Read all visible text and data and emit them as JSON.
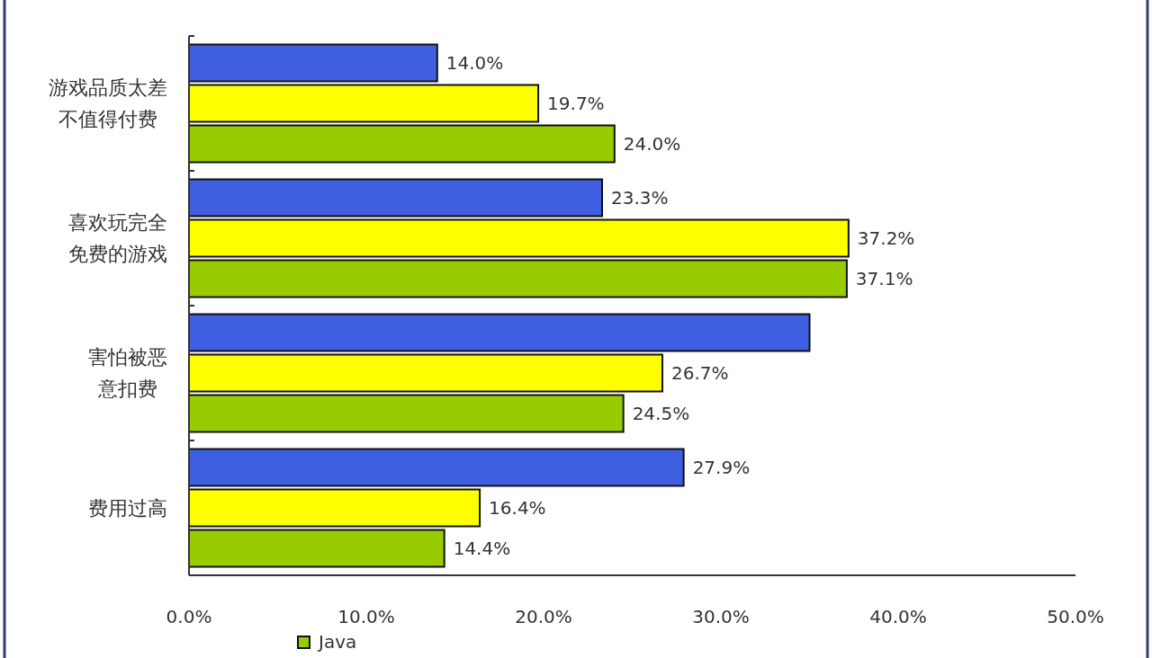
{
  "chart_data": {
    "type": "bar",
    "orientation": "horizontal",
    "categories": [
      "游戏品质太差不值得付费",
      "喜欢玩完全免费的游戏",
      "害怕被恶意扣费",
      "费用过高"
    ],
    "series": [
      {
        "color": "#3f5fe0",
        "values": [
          14.0,
          23.3,
          35.0,
          27.9
        ],
        "value_labels": [
          "14.0%",
          "23.3%",
          null,
          "27.9%"
        ]
      },
      {
        "color": "#ffff00",
        "values": [
          19.7,
          37.2,
          26.7,
          16.4
        ],
        "value_labels": [
          "19.7%",
          "37.2%",
          "26.7%",
          "16.4%"
        ]
      },
      {
        "name": "Java",
        "color": "#99cc00",
        "values": [
          24.0,
          37.1,
          24.5,
          14.4
        ],
        "value_labels": [
          "24.0%",
          "37.1%",
          "24.5%",
          "14.4%"
        ]
      }
    ],
    "xlim": [
      0,
      50
    ],
    "xticks": [
      {
        "value": 0,
        "label": "0.0%"
      },
      {
        "value": 10,
        "label": "10.0%"
      },
      {
        "value": 20,
        "label": "20.0%"
      },
      {
        "value": 30,
        "label": "30.0%"
      },
      {
        "value": 40,
        "label": "40.0%"
      },
      {
        "value": 50,
        "label": "50.0%"
      }
    ],
    "legend": "bottom"
  }
}
